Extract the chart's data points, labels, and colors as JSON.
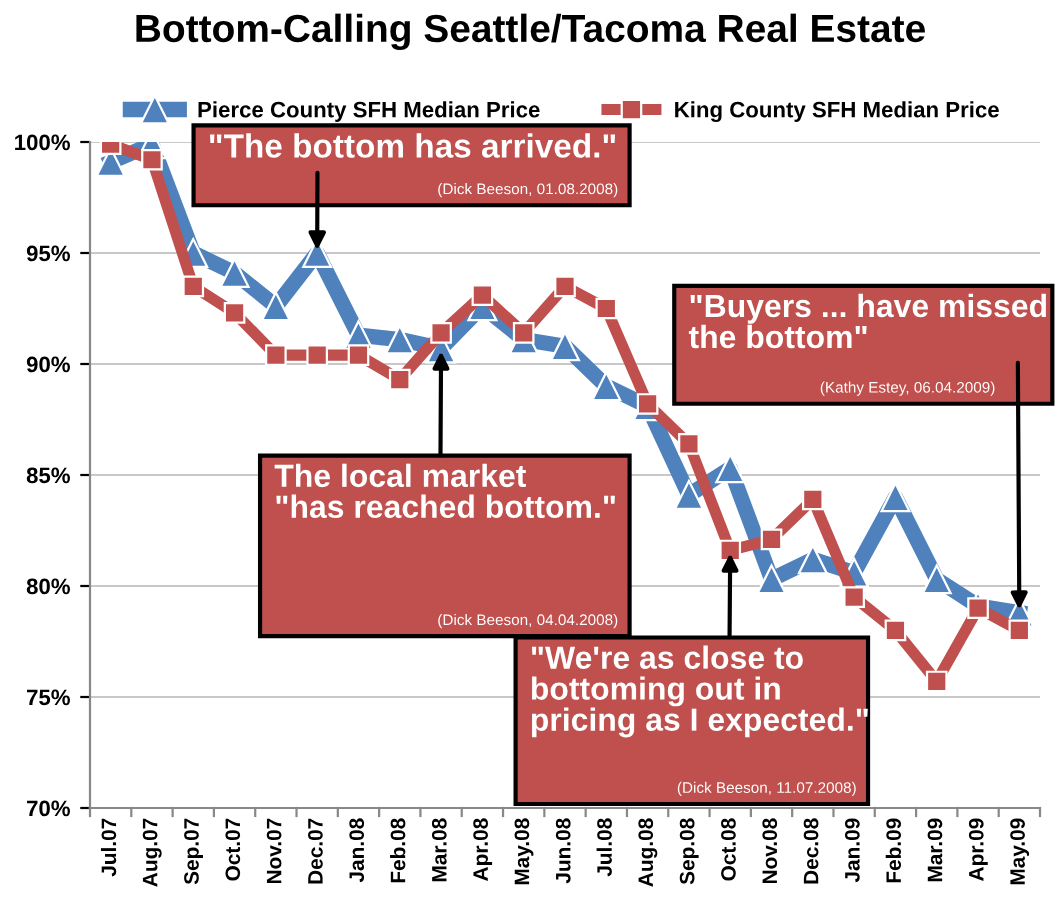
{
  "chart_data": {
    "type": "line",
    "title": "Bottom-Calling Seattle/Tacoma Real Estate",
    "categories": [
      "Jul.07",
      "Aug.07",
      "Sep.07",
      "Oct.07",
      "Nov.07",
      "Dec.07",
      "Jan.08",
      "Feb.08",
      "Mar.08",
      "Apr.08",
      "May.08",
      "Jun.08",
      "Jul.08",
      "Aug.08",
      "Sep.08",
      "Oct.08",
      "Nov.08",
      "Dec.08",
      "Jan.09",
      "Feb.09",
      "Mar.09",
      "Apr.09",
      "May.09"
    ],
    "series": [
      {
        "name": "Pierce County SFH Median Price",
        "color": "#4f81bd",
        "marker": "triangle",
        "values": [
          99.1,
          99.9,
          95.0,
          94.1,
          92.6,
          95.0,
          91.3,
          91.1,
          90.7,
          92.6,
          91.1,
          90.8,
          89.0,
          88.1,
          84.1,
          85.3,
          80.3,
          81.2,
          80.6,
          84.0,
          80.3,
          79.1,
          78.8
        ]
      },
      {
        "name": "King County SFH Median Price",
        "color": "#c0504d",
        "marker": "square",
        "values": [
          99.9,
          99.2,
          93.5,
          92.3,
          90.4,
          90.4,
          90.4,
          89.3,
          91.4,
          93.1,
          91.4,
          93.5,
          92.5,
          88.2,
          86.4,
          81.6,
          82.1,
          83.9,
          79.5,
          78.0,
          75.7,
          79.0,
          78.0
        ]
      }
    ],
    "ylim": [
      70,
      100
    ],
    "yticks": [
      {
        "value": 70,
        "label": "70%"
      },
      {
        "value": 75,
        "label": "75%"
      },
      {
        "value": 80,
        "label": "80%"
      },
      {
        "value": 85,
        "label": "85%"
      },
      {
        "value": 90,
        "label": "90%"
      },
      {
        "value": 95,
        "label": "95%"
      },
      {
        "value": 100,
        "label": "100%"
      }
    ],
    "grid": "y",
    "legend": "top",
    "line_style": "solid",
    "annotations": [
      {
        "text": "\"The bottom has arrived.\"",
        "x": "Dec.07",
        "y": 95.0
      },
      "(Dick Beeson, 01.08.2008)",
      {
        "text": "The local market\n\"has reached bottom.\"",
        "x": "Mar.08",
        "y": 90.7
      },
      "(Dick Beeson, 04.04.2008)",
      {
        "text": "\"We're as close to\nbottoming out in\npricing as I expected.\"",
        "x": "Oct.08",
        "y": 81.6
      },
      "(Dick Beeson, 11.07.2008)",
      {
        "text": "\"Buyers ... have missed\nthe bottom\"",
        "x": "May.09",
        "y": 78.8
      },
      "(Kathy Estey, 06.04.2009)"
    ]
  }
}
